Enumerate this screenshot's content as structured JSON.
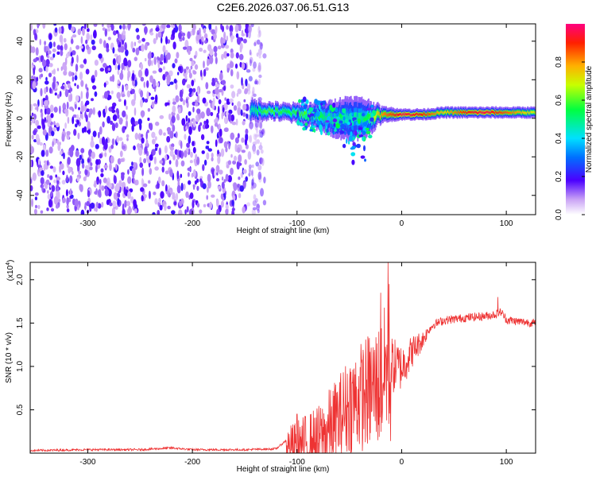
{
  "figure": {
    "title": "C2E6.2026.037.06.51.G13"
  },
  "chart_data": [
    {
      "type": "heatmap",
      "title": "C2E6.2026.037.06.51.G13",
      "xlabel": "Height of straight line (km)",
      "ylabel": "Frequency (Hz)",
      "xlim": [
        -355,
        128
      ],
      "ylim": [
        -50,
        49
      ],
      "x_ticks": [
        -300,
        -200,
        -100,
        0,
        100
      ],
      "y_ticks": [
        -40,
        -20,
        0,
        20,
        40
      ],
      "colorbar": {
        "label": "Normalized spectral amplitude",
        "range": [
          0,
          1
        ],
        "ticks": [
          0.0,
          0.2,
          0.4,
          0.6,
          0.8
        ]
      },
      "regions": [
        {
          "x_from": -355,
          "x_to": -140,
          "description_level": 0.12,
          "kind": "broadband noise"
        },
        {
          "x_from": -145,
          "x_to": 128,
          "center_hz": 3,
          "kind": "narrow signal band"
        }
      ],
      "signal_track": [
        {
          "x": -145,
          "center_hz": 4,
          "halfwidth_hz": 4,
          "peak": 0.45
        },
        {
          "x": -130,
          "center_hz": 4,
          "halfwidth_hz": 3,
          "peak": 0.6
        },
        {
          "x": -110,
          "center_hz": 3,
          "halfwidth_hz": 3,
          "peak": 0.55
        },
        {
          "x": -90,
          "center_hz": 2,
          "halfwidth_hz": 4,
          "peak": 0.6
        },
        {
          "x": -70,
          "center_hz": 0,
          "halfwidth_hz": 6,
          "peak": 0.5
        },
        {
          "x": -50,
          "center_hz": 0,
          "halfwidth_hz": 8,
          "peak": 0.45
        },
        {
          "x": -35,
          "center_hz": 0,
          "halfwidth_hz": 7,
          "peak": 0.5
        },
        {
          "x": -20,
          "center_hz": 2,
          "halfwidth_hz": 3,
          "peak": 0.8
        },
        {
          "x": 0,
          "center_hz": 2,
          "halfwidth_hz": 2,
          "peak": 0.95
        },
        {
          "x": 20,
          "center_hz": 2,
          "halfwidth_hz": 2,
          "peak": 0.9
        },
        {
          "x": 40,
          "center_hz": 3,
          "halfwidth_hz": 2,
          "peak": 0.75
        },
        {
          "x": 60,
          "center_hz": 3,
          "halfwidth_hz": 2,
          "peak": 0.9
        },
        {
          "x": 80,
          "center_hz": 3,
          "halfwidth_hz": 2,
          "peak": 0.95
        },
        {
          "x": 100,
          "center_hz": 3,
          "halfwidth_hz": 2,
          "peak": 0.85
        },
        {
          "x": 128,
          "center_hz": 3,
          "halfwidth_hz": 2,
          "peak": 0.7
        }
      ]
    },
    {
      "type": "line",
      "xlabel": "Height of straight line (km)",
      "ylabel": "SNR (10 * v/v)",
      "y_multiplier_label": "(x10",
      "y_multiplier_exponent": "4",
      "y_multiplier_close": ")",
      "xlim": [
        -355,
        128
      ],
      "ylim": [
        0,
        2.2
      ],
      "x_ticks": [
        -300,
        -200,
        -100,
        0,
        100
      ],
      "y_ticks": [
        0.5,
        1.0,
        1.5,
        2.0
      ],
      "series": [
        {
          "color": "#ee3333",
          "x": [
            -355,
            -300,
            -250,
            -220,
            -200,
            -150,
            -120,
            -110,
            -100,
            -90,
            -80,
            -70,
            -60,
            -50,
            -40,
            -30,
            -20,
            -15,
            -10,
            0,
            10,
            20,
            30,
            40,
            60,
            80,
            90,
            95,
            100,
            110,
            128
          ],
          "y": [
            0.03,
            0.04,
            0.04,
            0.06,
            0.04,
            0.04,
            0.05,
            0.15,
            0.2,
            0.25,
            0.3,
            0.45,
            0.6,
            0.8,
            0.9,
            1.0,
            1.1,
            1.3,
            1.15,
            1.1,
            1.25,
            1.35,
            1.5,
            1.55,
            1.58,
            1.6,
            1.62,
            1.65,
            1.56,
            1.54,
            1.52
          ]
        }
      ],
      "spikes": [
        {
          "x": -13,
          "y": 2.2
        },
        {
          "x": -20,
          "y": 1.85
        },
        {
          "x": -12,
          "y": 1.95
        },
        {
          "x": -100,
          "y": 0.45
        },
        {
          "x": 92,
          "y": 1.8
        }
      ]
    }
  ]
}
